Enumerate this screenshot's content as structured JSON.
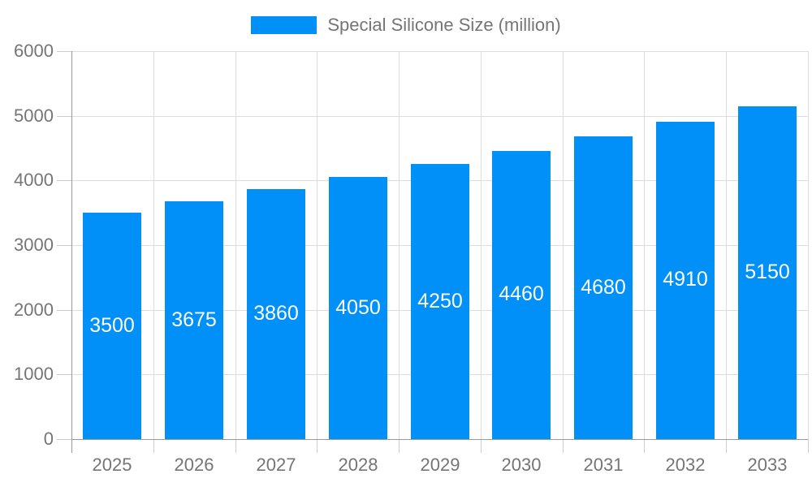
{
  "legend": {
    "label": "Special Silicone Size (million)"
  },
  "colors": {
    "bar": "#0090F8",
    "grid": "#DDDDDD",
    "tick": "#CCCCCC",
    "axis": "#999999",
    "axis_label": "#757575",
    "legend_text": "#757575",
    "bar_label": "#FFFFFF",
    "background": "#FFFFFF"
  },
  "chart_data": {
    "type": "bar",
    "title": "Special Silicone Size (million)",
    "categories": [
      "2025",
      "2026",
      "2027",
      "2028",
      "2029",
      "2030",
      "2031",
      "2032",
      "2033"
    ],
    "values": [
      3500,
      3675,
      3860,
      4050,
      4250,
      4460,
      4680,
      4910,
      5150
    ],
    "xlabel": "",
    "ylabel": "",
    "ylim": [
      0,
      6000
    ],
    "ytick_step": 1000,
    "yticks": [
      0,
      1000,
      2000,
      3000,
      4000,
      5000,
      6000
    ],
    "grid": true,
    "legend_position": "top",
    "bar_value_labels": "inside-center"
  }
}
